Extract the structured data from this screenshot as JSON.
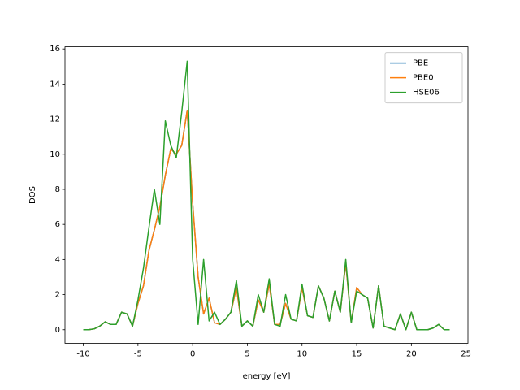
{
  "chart_data": {
    "type": "line",
    "xlabel": "energy [eV]",
    "ylabel": "DOS",
    "x": [
      -10,
      -9.5,
      -9,
      -8.5,
      -8,
      -7.5,
      -7,
      -6.5,
      -6,
      -5.5,
      -5,
      -4.5,
      -4,
      -3.5,
      -3,
      -2.5,
      -2,
      -1.5,
      -1,
      -0.5,
      0,
      0.5,
      1,
      1.5,
      2,
      2.5,
      3,
      3.5,
      4,
      4.5,
      5,
      5.5,
      6,
      6.5,
      7,
      7.5,
      8,
      8.5,
      9,
      9.5,
      10,
      10.5,
      11,
      11.5,
      12,
      12.5,
      13,
      13.5,
      14,
      14.5,
      15,
      15.5,
      16,
      16.5,
      17,
      17.5,
      18,
      18.5,
      19,
      19.5,
      20,
      20.5,
      21,
      21.5,
      22,
      22.5,
      23,
      23.5
    ],
    "series": [
      {
        "name": "PBE",
        "color": "#1f77b4",
        "values": [
          0,
          0,
          0.05,
          0.2,
          0.45,
          0.3,
          0.3,
          1.0,
          0.9,
          0.2,
          1.5,
          2.5,
          4.5,
          5.7,
          7.0,
          8.8,
          10.3,
          10.0,
          10.5,
          12.5,
          7.2,
          3.0,
          0.9,
          1.8,
          0.4,
          0.3,
          0.6,
          1.0,
          2.4,
          0.2,
          0.5,
          0.2,
          1.7,
          1.0,
          2.6,
          0.3,
          0.3,
          1.5,
          0.6,
          0.5,
          2.4,
          0.8,
          0.7,
          2.5,
          1.8,
          0.5,
          2.2,
          1.0,
          3.8,
          0.4,
          2.4,
          2.0,
          1.8,
          0.1,
          2.5,
          0.2,
          0.1,
          0,
          0.9,
          0,
          1.0,
          0,
          0,
          0,
          0.1,
          0.3,
          0,
          0
        ]
      },
      {
        "name": "PBE0",
        "color": "#ff7f0e",
        "values": [
          0,
          0,
          0.05,
          0.2,
          0.45,
          0.3,
          0.3,
          1.0,
          0.9,
          0.2,
          1.5,
          2.5,
          4.5,
          5.7,
          7.0,
          8.8,
          10.3,
          10.0,
          10.5,
          12.5,
          7.2,
          3.0,
          0.9,
          1.8,
          0.4,
          0.3,
          0.6,
          1.0,
          2.4,
          0.2,
          0.5,
          0.2,
          1.7,
          1.0,
          2.6,
          0.3,
          0.3,
          1.5,
          0.6,
          0.5,
          2.4,
          0.8,
          0.7,
          2.5,
          1.8,
          0.5,
          2.2,
          1.0,
          3.8,
          0.4,
          2.4,
          2.0,
          1.8,
          0.1,
          2.5,
          0.2,
          0.1,
          0,
          0.9,
          0,
          1.0,
          0,
          0,
          0,
          0.1,
          0.3,
          0,
          0
        ]
      },
      {
        "name": "HSE06",
        "color": "#2ca02c",
        "values": [
          0,
          0,
          0.05,
          0.2,
          0.45,
          0.3,
          0.3,
          1.0,
          0.9,
          0.2,
          1.7,
          3.5,
          5.8,
          8.0,
          6.0,
          11.9,
          10.5,
          9.8,
          12.4,
          15.3,
          4.0,
          0.3,
          4.0,
          0.5,
          1.0,
          0.3,
          0.6,
          1.0,
          2.8,
          0.2,
          0.5,
          0.2,
          2.0,
          1.0,
          2.9,
          0.3,
          0.2,
          2.0,
          0.6,
          0.5,
          2.6,
          0.8,
          0.7,
          2.5,
          1.8,
          0.5,
          2.2,
          1.0,
          4.0,
          0.4,
          2.2,
          2.0,
          1.8,
          0.1,
          2.5,
          0.2,
          0.1,
          0,
          0.9,
          0,
          1.0,
          0,
          0,
          0,
          0.1,
          0.3,
          0,
          0
        ]
      }
    ],
    "xlim": [
      -11.675,
      25.175
    ],
    "xticks": [
      -10,
      -5,
      0,
      5,
      10,
      15,
      20,
      25
    ],
    "ylim": [
      -0.77,
      16.12
    ],
    "yticks": [
      0,
      2,
      4,
      6,
      8,
      10,
      12,
      14,
      16
    ],
    "grid": false,
    "legend": "upper right"
  }
}
